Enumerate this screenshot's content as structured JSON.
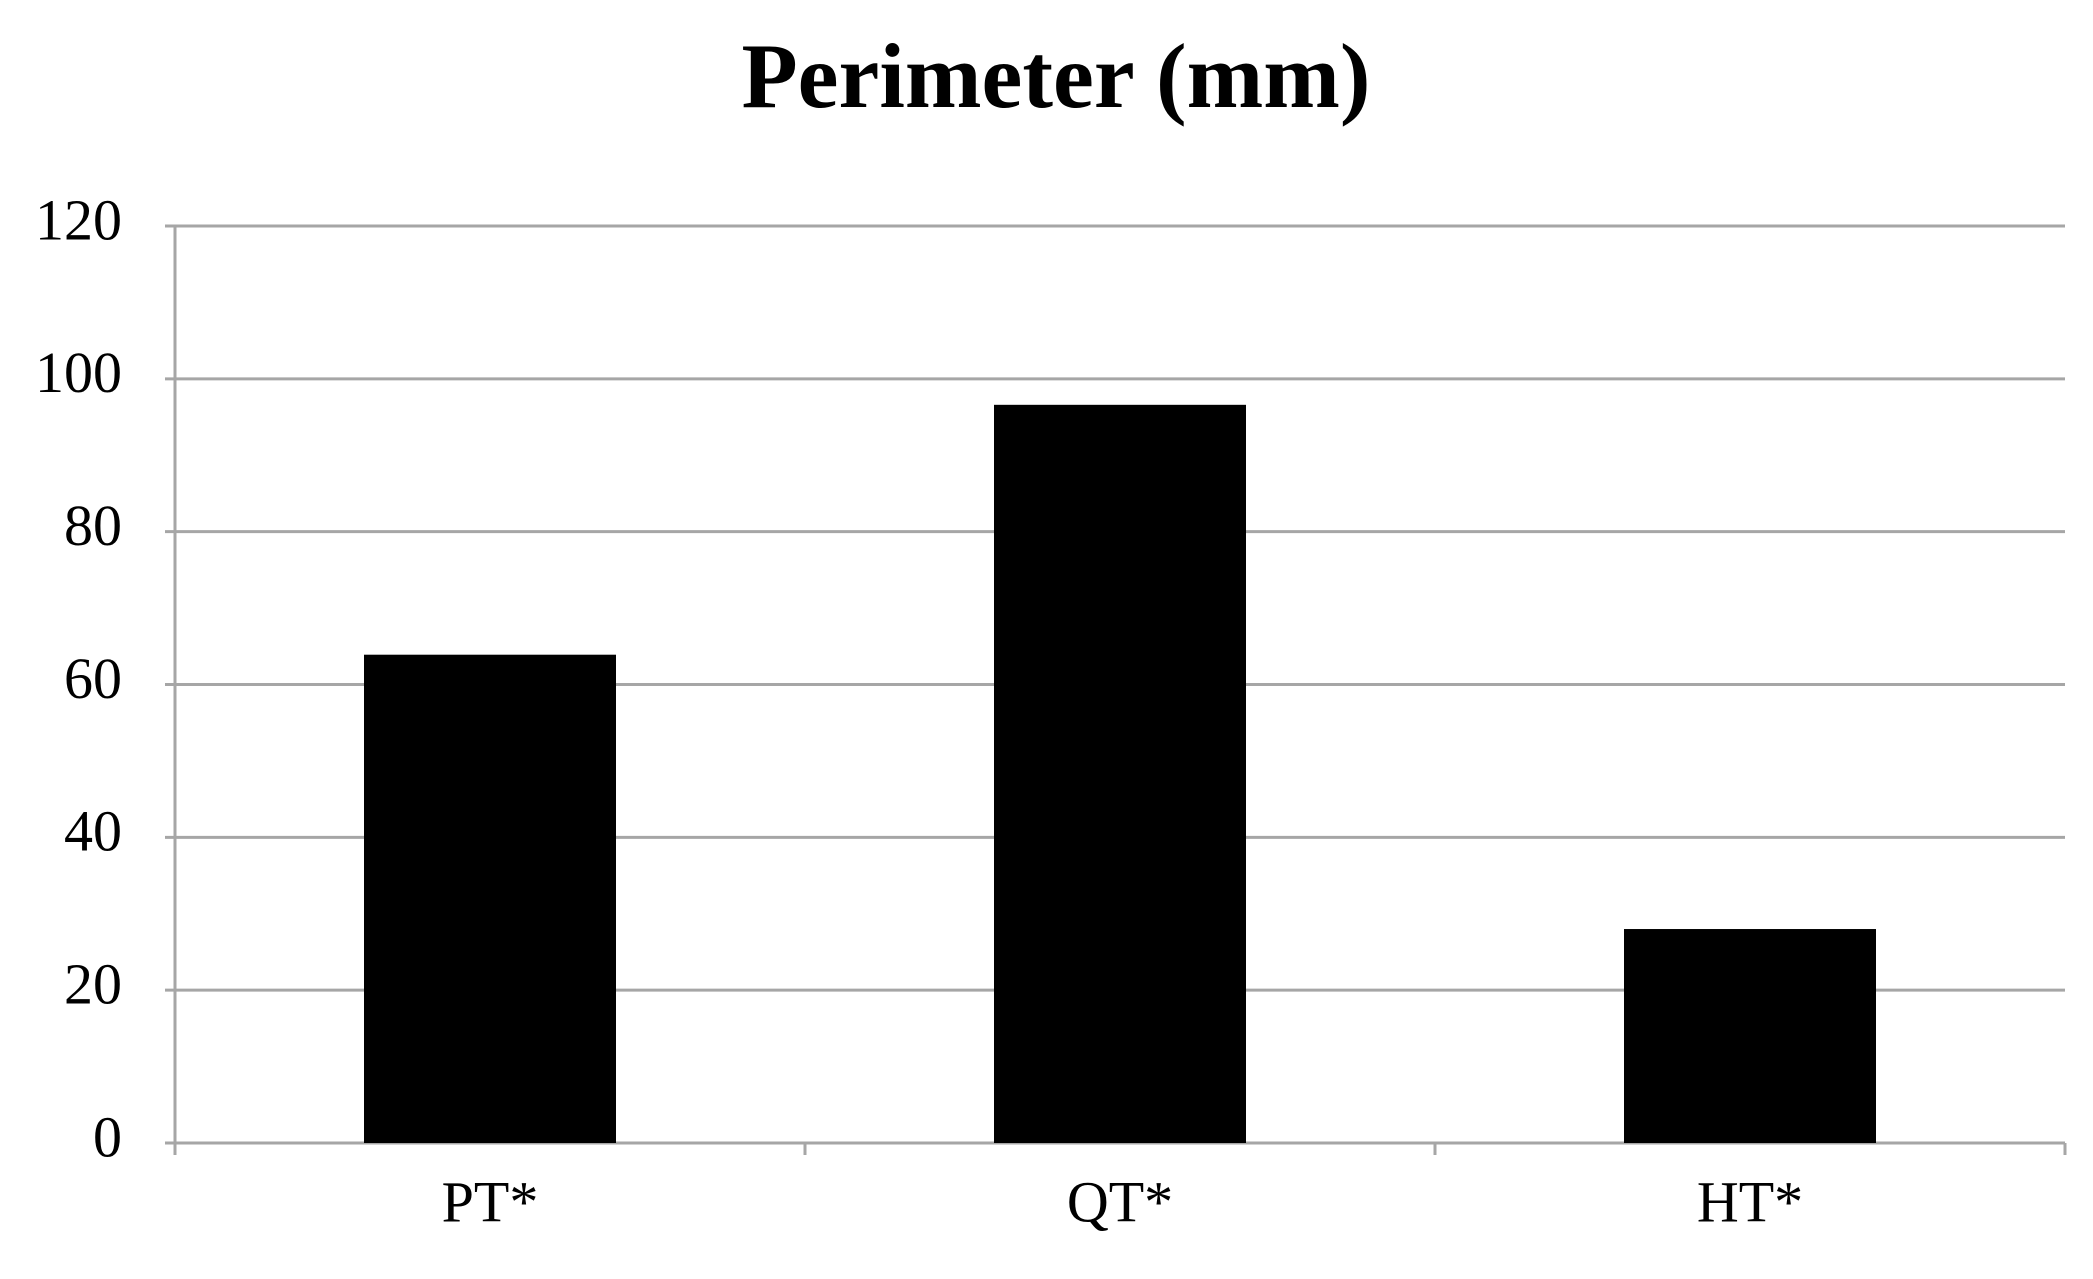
{
  "chart_data": {
    "type": "bar",
    "title": "Perimeter (mm)",
    "categories": [
      "PT*",
      "QT*",
      "HT*"
    ],
    "values": [
      63.9,
      96.6,
      28
    ],
    "color": "#000000",
    "ylim": [
      0,
      120
    ],
    "yticks": [
      0,
      20,
      40,
      60,
      80,
      100,
      120
    ],
    "grid": true
  }
}
